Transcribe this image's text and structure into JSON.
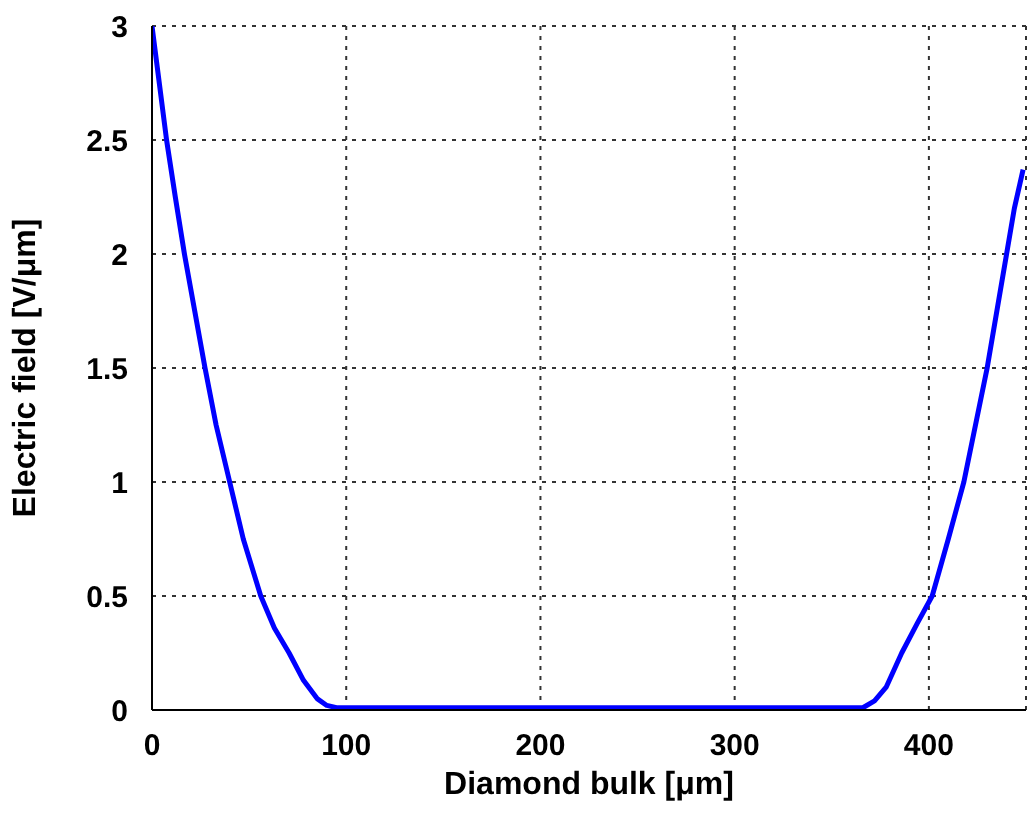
{
  "chart_data": {
    "type": "line",
    "xlabel": "Diamond bulk [μm]",
    "ylabel": "Electric field [V/μm]",
    "x": [
      0,
      3,
      7.5,
      12,
      16.7,
      22,
      27.3,
      33,
      40,
      47,
      56,
      63,
      70.6,
      78,
      85,
      90,
      95,
      150,
      200,
      250,
      300,
      350,
      366,
      372,
      378,
      386,
      394,
      401.7,
      410,
      418,
      424,
      430,
      435,
      440,
      444,
      448.5
    ],
    "series": [
      {
        "color": "#0000ff",
        "values": [
          3,
          2.8,
          2.5,
          2.25,
          2,
          1.75,
          1.5,
          1.25,
          1,
          0.75,
          0.5,
          0.36,
          0.25,
          0.13,
          0.05,
          0.02,
          0.01,
          0.01,
          0.01,
          0.01,
          0.01,
          0.01,
          0.01,
          0.04,
          0.1,
          0.25,
          0.38,
          0.5,
          0.75,
          1,
          1.25,
          1.5,
          1.75,
          2,
          2.2,
          2.37
        ]
      }
    ],
    "xlim": [
      0,
      450
    ],
    "xticks": [
      0,
      100,
      200,
      300,
      400
    ],
    "ylim": [
      0,
      3
    ],
    "yticks": [
      0,
      0.5,
      1,
      1.5,
      2,
      2.5,
      3
    ],
    "grid": true,
    "line_style": "solid",
    "marker": "none"
  }
}
